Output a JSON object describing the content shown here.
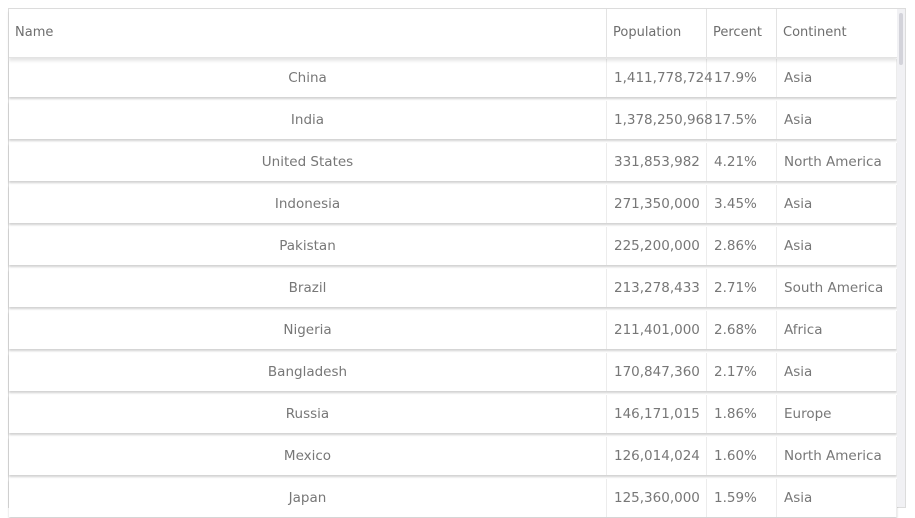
{
  "table": {
    "columns": [
      {
        "key": "name",
        "label": "Name"
      },
      {
        "key": "population",
        "label": "Population"
      },
      {
        "key": "percent",
        "label": "Percent"
      },
      {
        "key": "continent",
        "label": "Continent"
      }
    ],
    "rows": [
      {
        "name": "China",
        "population": "1,411,778,724",
        "percent": "17.9%",
        "continent": "Asia"
      },
      {
        "name": "India",
        "population": "1,378,250,968",
        "percent": "17.5%",
        "continent": "Asia"
      },
      {
        "name": "United States",
        "population": "331,853,982",
        "percent": "4.21%",
        "continent": "North America"
      },
      {
        "name": "Indonesia",
        "population": "271,350,000",
        "percent": "3.45%",
        "continent": "Asia"
      },
      {
        "name": "Pakistan",
        "population": "225,200,000",
        "percent": "2.86%",
        "continent": "Asia"
      },
      {
        "name": "Brazil",
        "population": "213,278,433",
        "percent": "2.71%",
        "continent": "South America"
      },
      {
        "name": "Nigeria",
        "population": "211,401,000",
        "percent": "2.68%",
        "continent": "Africa"
      },
      {
        "name": "Bangladesh",
        "population": "170,847,360",
        "percent": "2.17%",
        "continent": "Asia"
      },
      {
        "name": "Russia",
        "population": "146,171,015",
        "percent": "1.86%",
        "continent": "Europe"
      },
      {
        "name": "Mexico",
        "population": "126,014,024",
        "percent": "1.60%",
        "continent": "North America"
      },
      {
        "name": "Japan",
        "population": "125,360,000",
        "percent": "1.59%",
        "continent": "Asia"
      }
    ]
  },
  "colors": {
    "text": "#777777",
    "border": "#e3e3e3",
    "scrollbar_track": "#f1f1f4",
    "scrollbar_thumb": "#d3d3da"
  }
}
